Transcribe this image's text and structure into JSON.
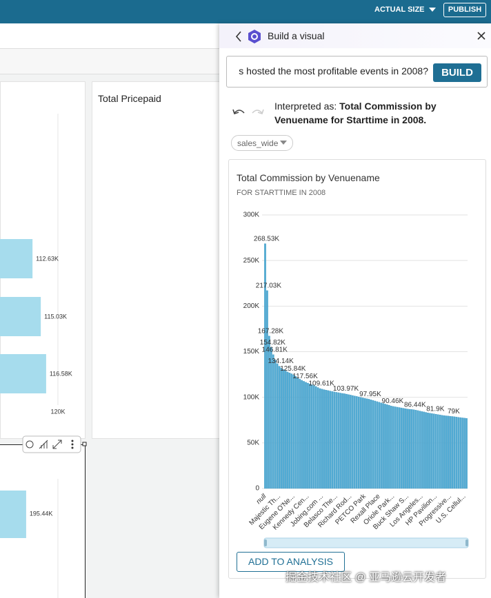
{
  "top_bar": {
    "actual_size": "ACTUAL SIZE",
    "publish": "PUBLISH"
  },
  "background": {
    "panel_left": {
      "type": "bar",
      "values": [
        112630,
        115030,
        116580
      ],
      "value_labels": [
        "112.63K",
        "115.03K",
        "116.58K"
      ],
      "xticks": [
        {
          "value": 120000,
          "label": "120K"
        }
      ],
      "color": "#a6dced"
    },
    "panel_total": {
      "title": "Total Pricepaid"
    },
    "panel_lower": {
      "type": "bar",
      "values": [
        195440
      ],
      "value_labels": [
        "195.44K"
      ],
      "color": "#a6dced"
    }
  },
  "build_panel": {
    "title": "Build a visual",
    "query": "s hosted the most profitable events in 2008?",
    "build_button": "BUILD",
    "interpreted_prefix": "Interpreted as:",
    "interpreted_text": "Total Commission by Venuename for Starttime in 2008.",
    "dataset": "sales_wide",
    "add_button": "ADD TO ANALYSIS"
  },
  "chart_data": {
    "type": "bar",
    "title": "Total Commission by Venuename",
    "subtitle": "FOR STARTTIME IN 2008",
    "color": "#52abd4",
    "grid": true,
    "ylim": [
      0,
      300000
    ],
    "yticks": [
      0,
      {
        "value": 50000,
        "label": "50K"
      },
      {
        "value": 100000,
        "label": "100K"
      },
      {
        "value": 150000,
        "label": "150K"
      },
      {
        "value": 200000,
        "label": "200K"
      },
      {
        "value": 250000,
        "label": "250K"
      },
      {
        "value": 300000,
        "label": "300K"
      }
    ],
    "categories": [
      "null",
      null,
      null,
      null,
      null,
      null,
      null,
      "Majestic Th...",
      null,
      null,
      null,
      null,
      null,
      null,
      "Eugene O'Ne...",
      null,
      null,
      null,
      null,
      null,
      null,
      "Kennedy Cen...",
      null,
      null,
      null,
      null,
      null,
      null,
      "Jobing.com ...",
      null,
      null,
      null,
      null,
      null,
      null,
      "Belasco The...",
      null,
      null,
      null,
      null,
      null,
      null,
      "Richard Rod...",
      null,
      null,
      null,
      null,
      null,
      null,
      "PETCO Park",
      null,
      null,
      null,
      null,
      null,
      null,
      "Rexall Place",
      null,
      null,
      null,
      null,
      null,
      null,
      "Oriole Park...",
      null,
      null,
      null,
      null,
      null,
      null,
      "Buck Shaw S...",
      null,
      null,
      null,
      null,
      null,
      null,
      "Los Angeles...",
      null,
      null,
      null,
      null,
      null,
      null,
      "HP Pavilion...",
      null,
      null,
      null,
      null,
      null,
      null,
      "Progressive...",
      null,
      null,
      null,
      null,
      null,
      null,
      "U.S. Cellul...",
      null
    ],
    "values": [
      268530,
      217030,
      167280,
      154820,
      146810,
      141000,
      137000,
      134140,
      132000,
      130500,
      129000,
      127800,
      126800,
      125840,
      124500,
      123000,
      121500,
      120000,
      118700,
      117560,
      116500,
      115600,
      114700,
      113800,
      112900,
      111900,
      110700,
      109610,
      109000,
      108400,
      107900,
      107400,
      106900,
      106400,
      106000,
      105500,
      105100,
      104700,
      104300,
      103970,
      103500,
      103000,
      102500,
      102000,
      101500,
      101000,
      100500,
      100000,
      99400,
      98900,
      98400,
      97950,
      97300,
      96700,
      96000,
      95300,
      94700,
      94000,
      93300,
      92600,
      91900,
      91200,
      90460,
      90000,
      89600,
      89200,
      88800,
      88400,
      88000,
      87600,
      87200,
      86900,
      86700,
      86440,
      86000,
      85500,
      85000,
      84500,
      84000,
      83500,
      83000,
      82600,
      82200,
      81900,
      81500,
      81100,
      80700,
      80300,
      80000,
      79700,
      79500,
      79200,
      79000,
      78700,
      78400,
      78100,
      77800,
      77500,
      77200,
      76900
    ],
    "value_labels": [
      "268.53K",
      "217.03K",
      "167.28K",
      "154.82K",
      "146.81K",
      null,
      null,
      "134.14K",
      null,
      null,
      null,
      null,
      null,
      "125.84K",
      null,
      null,
      null,
      null,
      null,
      "117.56K",
      null,
      null,
      null,
      null,
      null,
      null,
      null,
      "109.61K",
      null,
      null,
      null,
      null,
      null,
      null,
      null,
      null,
      null,
      null,
      null,
      "103.97K",
      null,
      null,
      null,
      null,
      null,
      null,
      null,
      null,
      null,
      null,
      null,
      "97.95K",
      null,
      null,
      null,
      null,
      null,
      null,
      null,
      null,
      null,
      null,
      "90.46K",
      null,
      null,
      null,
      null,
      null,
      null,
      null,
      null,
      null,
      null,
      "86.44K",
      null,
      null,
      null,
      null,
      null,
      null,
      null,
      null,
      null,
      "81.9K",
      null,
      null,
      null,
      null,
      null,
      null,
      null,
      null,
      "79K",
      null,
      null,
      null,
      null,
      null,
      null,
      null
    ]
  },
  "watermark": "掘金技术社区 @ 亚马逊云开发者"
}
